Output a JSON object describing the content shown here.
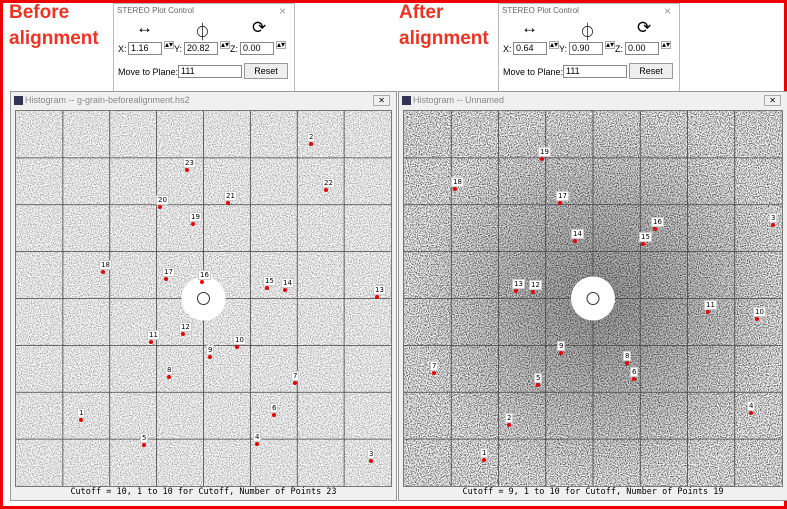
{
  "panels": [
    {
      "heading": "Before alignment",
      "stereo": {
        "title": "STEREO Plot Control",
        "x_label": "X:",
        "x": "1.16",
        "y_label": "Y:",
        "y": "20.82",
        "z_label": "Z:",
        "z": "0.00",
        "move_label": "Move to Plane:",
        "plane": "111",
        "reset": "Reset"
      },
      "histogram": {
        "title": "Histogram -- g-grain-beforealignment.hs2",
        "spots": [
          "2",
          "23",
          "22",
          "21",
          "20",
          "19",
          "18",
          "17",
          "16",
          "15",
          "14",
          "13",
          "12",
          "11",
          "10",
          "9",
          "8",
          "7",
          "6",
          "1",
          "5",
          "4",
          "3"
        ],
        "footer": "Cutoff = 10, 1 to 10 for Cutoff, Number of Points 23"
      }
    },
    {
      "heading": "After alignment",
      "stereo": {
        "title": "STEREO Plot Control",
        "x_label": "X:",
        "x": "0.64",
        "y_label": "Y:",
        "y": "0.90",
        "z_label": "Z:",
        "z": "0.00",
        "move_label": "Move to Plane:",
        "plane": "111",
        "reset": "Reset"
      },
      "histogram": {
        "title": "Histogram -- Unnamed",
        "spots": [
          "19",
          "18",
          "17",
          "16",
          "15",
          "14",
          "3",
          "13",
          "12",
          "11",
          "10",
          "9",
          "8",
          "7",
          "6",
          "5",
          "4",
          "2",
          "1"
        ],
        "footer": "Cutoff =  9, 1 to 10 for Cutoff, Number of Points 19"
      }
    }
  ]
}
